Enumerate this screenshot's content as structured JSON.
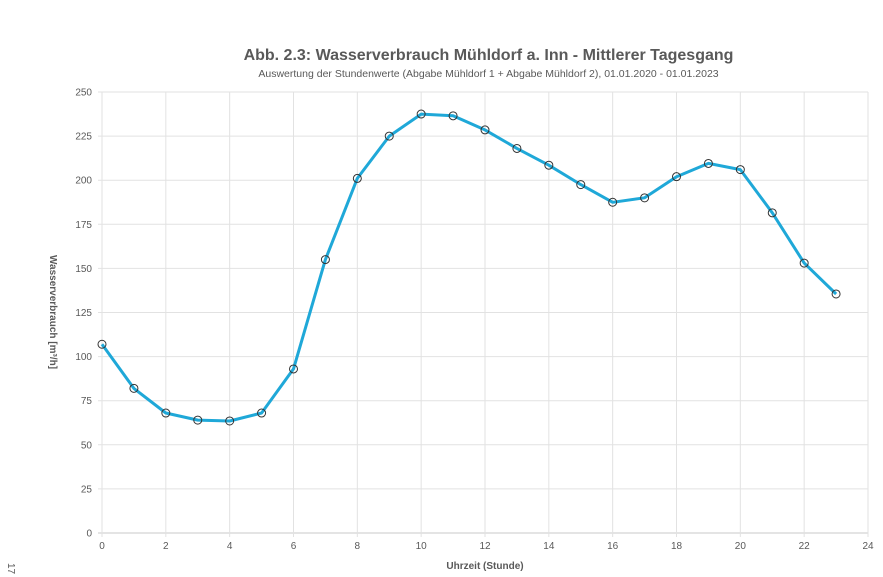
{
  "chart_data": {
    "type": "line",
    "title": "Abb. 2.3: Wasserverbrauch Mühldorf a. Inn - Mittlerer Tagesgang",
    "subtitle": "Auswertung der Stundenwerte (Abgabe Mühldorf 1 + Abgabe Mühldorf 2), 01.01.2020 - 01.01.2023",
    "xlabel": "Uhrzeit (Stunde)",
    "ylabel": "Wasserverbrauch [m³/h]",
    "xlim": [
      0,
      24
    ],
    "ylim": [
      0,
      250
    ],
    "xticks": [
      0,
      2,
      4,
      6,
      8,
      10,
      12,
      14,
      16,
      18,
      20,
      22,
      24
    ],
    "yticks": [
      0,
      25,
      50,
      75,
      100,
      125,
      150,
      175,
      200,
      225,
      250
    ],
    "grid": true,
    "legend": null,
    "x": [
      0,
      1,
      2,
      3,
      4,
      5,
      6,
      7,
      8,
      9,
      10,
      11,
      12,
      13,
      14,
      15,
      16,
      17,
      18,
      19,
      20,
      21,
      22,
      23
    ],
    "series": [
      {
        "name": "Mittlerer Tagesgang",
        "color": "#1fa8d8",
        "marker": "circle-open",
        "values": [
          107,
          82,
          68,
          64,
          63.5,
          68,
          93,
          155,
          201,
          225,
          237.5,
          236.5,
          228.5,
          218,
          208.5,
          197.5,
          187.5,
          190,
          202,
          209.5,
          206,
          181.5,
          153,
          135.5
        ]
      }
    ]
  },
  "page": {
    "page_number": "17"
  }
}
